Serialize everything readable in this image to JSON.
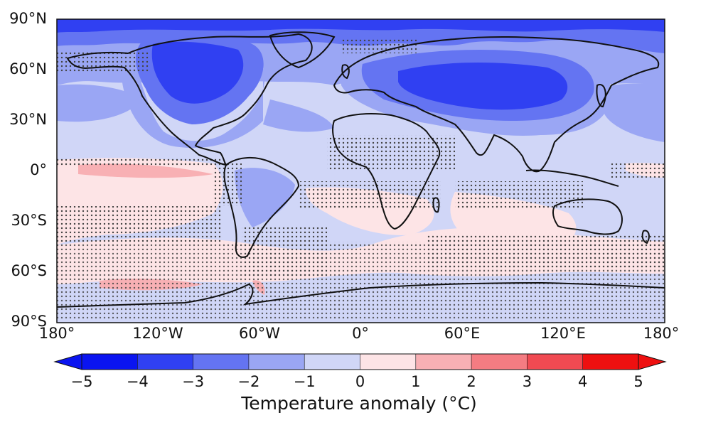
{
  "map": {
    "lat_ticks": [
      "90°N",
      "60°N",
      "30°N",
      "0°",
      "30°S",
      "60°S",
      "90°S"
    ],
    "lon_ticks": [
      "180°",
      "120°W",
      "60°W",
      "0°",
      "60°E",
      "120°E",
      "180°"
    ],
    "stippling": "dotted"
  },
  "colorbar": {
    "ticks": [
      "−5",
      "−4",
      "−3",
      "−2",
      "−1",
      "0",
      "1",
      "2",
      "3",
      "4",
      "5"
    ],
    "label": "Temperature anomaly (°C)",
    "colors": [
      "#0a14f0",
      "#3040f2",
      "#6474f2",
      "#9aa6f4",
      "#d0d6f7",
      "#fde4e6",
      "#f8b0b4",
      "#f47c82",
      "#f04a52",
      "#ee1010"
    ]
  }
}
